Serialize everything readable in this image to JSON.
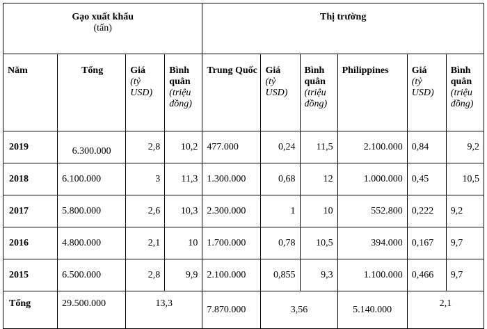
{
  "headers": {
    "group_export_line1": "Gạo xuất khẩu",
    "group_export_line2": "(tấn)",
    "group_market": "Thị trường",
    "year": "Năm",
    "total": "Tổng",
    "price_label": "Giá",
    "price_unit": "(tỷ USD)",
    "avg_label": "Bình quân",
    "avg_unit": "(triệu đồng)",
    "china": "Trung Quốc",
    "philippines": "Philippines"
  },
  "rows": [
    {
      "year": "2019",
      "total": "6.300.000",
      "price": "2,8",
      "avg": "10,2",
      "cn": "477.000",
      "cn_price": "0,24",
      "cn_avg": "11,5",
      "ph": "2.100.000",
      "ph_price": "0,84",
      "ph_avg": "9,2"
    },
    {
      "year": "2018",
      "total": "6.100.000",
      "price": "3",
      "avg": "11,3",
      "cn": "1.300.000",
      "cn_price": "0,68",
      "cn_avg": "12",
      "ph": "1.000.000",
      "ph_price": "0,45",
      "ph_avg": "10,5"
    },
    {
      "year": "2017",
      "total": "5.800.000",
      "price": "2,6",
      "avg": "10,3",
      "cn": "2.300.000",
      "cn_price": "1",
      "cn_avg": "10",
      "ph": "552.800",
      "ph_price": "0,222",
      "ph_avg": "9,2"
    },
    {
      "year": "2016",
      "total": "4.800.000",
      "price": "2,1",
      "avg": "10",
      "cn": "1.700.000",
      "cn_price": "0,78",
      "cn_avg": "10,5",
      "ph": "394.000",
      "ph_price": "0,167",
      "ph_avg": "9,7"
    },
    {
      "year": "2015",
      "total": "6.500.000",
      "price": "2,8",
      "avg": "9,9",
      "cn": "2.100.000",
      "cn_price": "0,855",
      "cn_avg": "9,3",
      "ph": "1.100.000",
      "ph_price": "0,466",
      "ph_avg": "9,7"
    }
  ],
  "totals": {
    "label": "Tổng",
    "total": "29.500.000",
    "price": "13,3",
    "cn": "7.870.000",
    "cn_price": "3,56",
    "ph": "5.140.000",
    "ph_price": "2,1"
  }
}
